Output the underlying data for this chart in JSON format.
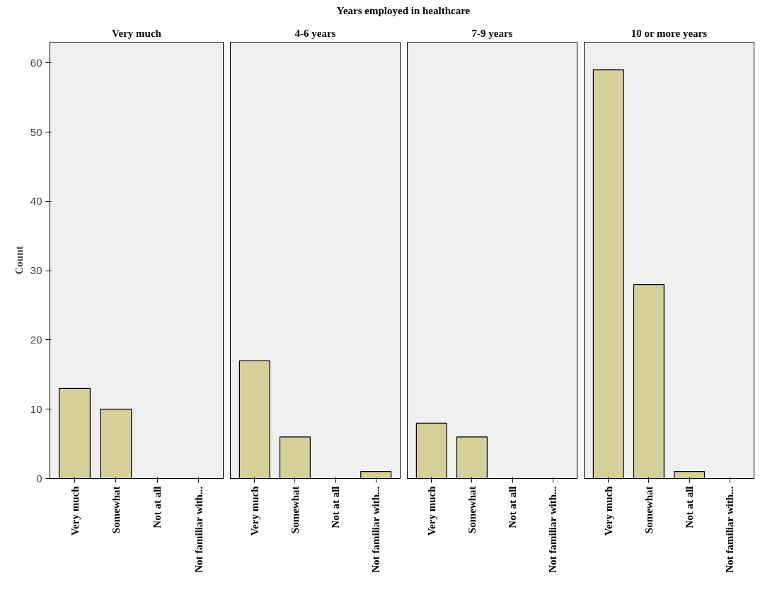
{
  "chart_data": [
    {
      "type": "bar",
      "title": "Very much",
      "annotations": [
        "Years employed in healthcare"
      ],
      "ylabel": "Count",
      "categories": [
        "Very much",
        "Somewhat",
        "Not at all",
        "Not familiar with..."
      ],
      "values": [
        13,
        10,
        0,
        0
      ],
      "color": "#d5cf99",
      "ylim": [
        0,
        63
      ],
      "yticks": [
        0,
        10,
        20,
        30,
        40,
        50,
        60
      ],
      "grid": false
    },
    {
      "type": "bar",
      "title": "4-6 years",
      "categories": [
        "Very much",
        "Somewhat",
        "Not at all",
        "Not familiar with..."
      ],
      "values": [
        17,
        6,
        0,
        1
      ],
      "color": "#d5cf99",
      "ylim": [
        0,
        63
      ],
      "yticks": [
        0,
        10,
        20,
        30,
        40,
        50,
        60
      ],
      "grid": false,
      "tick_labels": "x"
    },
    {
      "type": "bar",
      "title": "7-9 years",
      "categories": [
        "Very much",
        "Somewhat",
        "Not at all",
        "Not familiar with..."
      ],
      "values": [
        8,
        6,
        0,
        0
      ],
      "color": "#d5cf99",
      "ylim": [
        0,
        63
      ],
      "yticks": [
        0,
        10,
        20,
        30,
        40,
        50,
        60
      ],
      "grid": false,
      "tick_labels": "x"
    },
    {
      "type": "bar",
      "title": "10 or more years",
      "categories": [
        "Very much",
        "Somewhat",
        "Not at all",
        "Not familiar with..."
      ],
      "values": [
        59,
        28,
        1,
        0
      ],
      "color": "#d5cf99",
      "ylim": [
        0,
        63
      ],
      "yticks": [
        0,
        10,
        20,
        30,
        40,
        50,
        60
      ],
      "grid": false,
      "tick_labels": "x"
    }
  ]
}
